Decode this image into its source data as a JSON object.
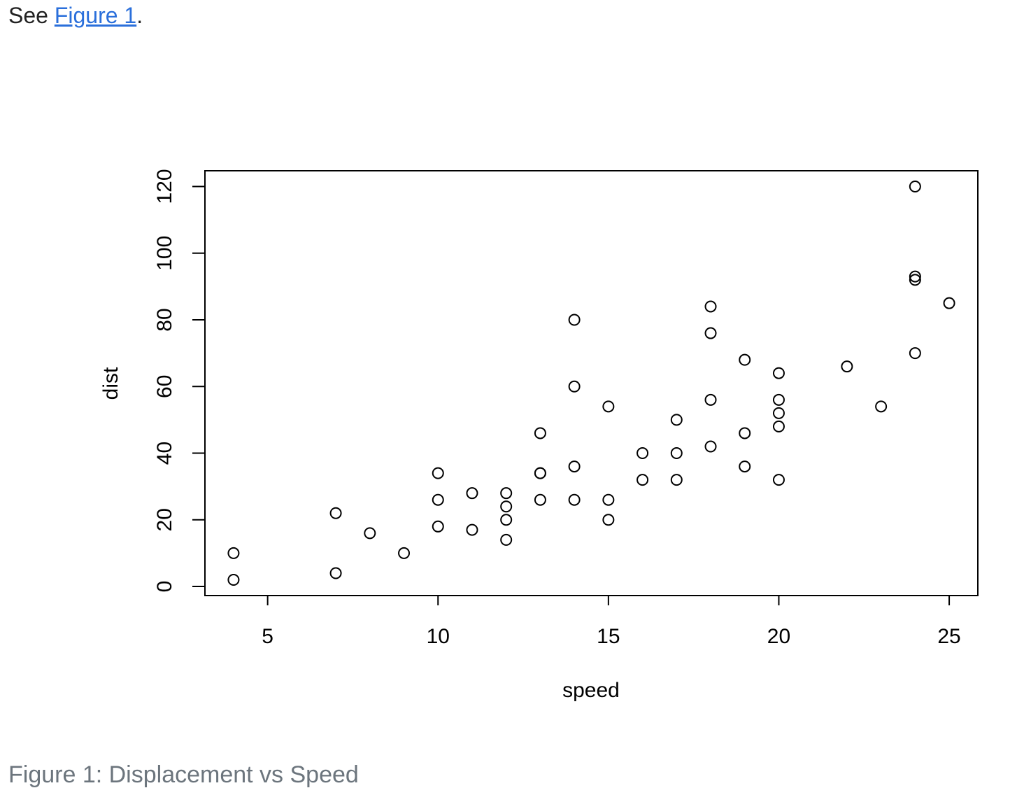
{
  "text": {
    "prefix": "See",
    "link": "Figure 1",
    "suffix": "."
  },
  "chart_data": {
    "type": "scatter",
    "caption": "Figure 1: Displacement vs Speed",
    "x_label": "speed",
    "y_label": "dist",
    "x": [
      4,
      4,
      7,
      7,
      8,
      9,
      10,
      10,
      10,
      11,
      11,
      12,
      12,
      12,
      12,
      13,
      13,
      13,
      13,
      14,
      14,
      14,
      14,
      15,
      15,
      15,
      16,
      16,
      17,
      17,
      17,
      18,
      18,
      18,
      18,
      19,
      19,
      19,
      20,
      20,
      20,
      20,
      20,
      22,
      23,
      24,
      24,
      24,
      24,
      25
    ],
    "y": [
      2,
      10,
      4,
      22,
      16,
      10,
      18,
      26,
      34,
      17,
      28,
      14,
      20,
      24,
      28,
      26,
      34,
      34,
      46,
      26,
      36,
      60,
      80,
      20,
      26,
      54,
      32,
      40,
      32,
      40,
      50,
      42,
      56,
      76,
      84,
      36,
      46,
      68,
      32,
      48,
      52,
      56,
      64,
      66,
      54,
      70,
      92,
      93,
      120,
      85
    ],
    "color": "#000000",
    "xlim": [
      3.16,
      25.84
    ],
    "ylim": [
      -2.72,
      124.72
    ],
    "xticks": [
      5,
      10,
      15,
      20,
      25
    ],
    "yticks": [
      0,
      20,
      40,
      60,
      80,
      100,
      120
    ]
  }
}
